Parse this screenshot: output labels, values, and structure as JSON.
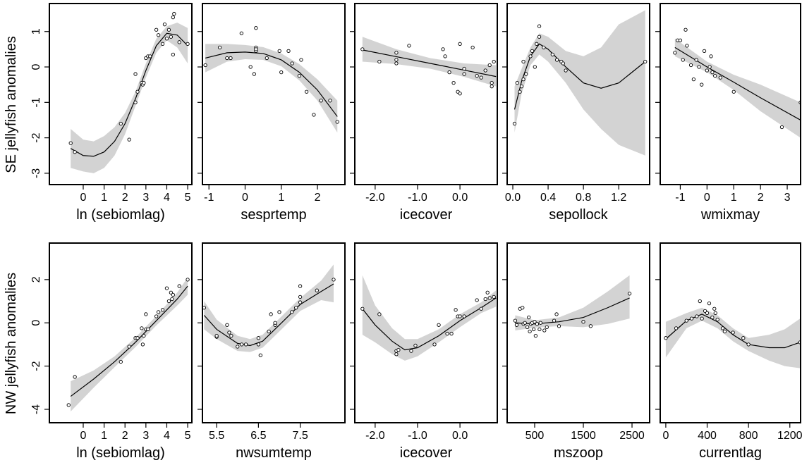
{
  "chart_data": [
    {
      "type": "scatter",
      "xlabel": "ln (sebiomlag)",
      "ylabel": "SE jellyfish anomalies",
      "xlim": [
        -1.62,
        5.2
      ],
      "xticks": [
        0,
        1,
        2,
        3,
        4,
        5
      ],
      "ylim": [
        -3.32,
        1.79
      ],
      "yticks": [
        -3,
        -2,
        -1,
        0,
        1
      ],
      "x": [
        -0.6,
        -0.4,
        1.8,
        2.2,
        2.5,
        2.5,
        2.6,
        2.8,
        2.85,
        2.9,
        3.0,
        3.1,
        3.2,
        3.5,
        3.6,
        3.8,
        3.9,
        4.0,
        4.1,
        4.2,
        4.3,
        4.35,
        4.3,
        4.6,
        5.0
      ],
      "values": [
        -2.15,
        -2.4,
        -1.6,
        -2.05,
        -0.2,
        -1.0,
        -0.7,
        -0.45,
        -0.5,
        -0.45,
        0.25,
        0.3,
        0.3,
        1.05,
        0.9,
        0.65,
        1.2,
        0.8,
        1.05,
        0.85,
        1.4,
        1.5,
        0.35,
        0.7,
        0.65
      ],
      "fit_x": [
        -0.6,
        0,
        0.5,
        1,
        1.5,
        2,
        2.5,
        3,
        3.5,
        4,
        4.5,
        5
      ],
      "fit": [
        -2.3,
        -2.5,
        -2.52,
        -2.4,
        -2.1,
        -1.6,
        -0.9,
        -0.1,
        0.6,
        0.95,
        0.9,
        0.6
      ],
      "fit_lower": [
        -2.85,
        -2.95,
        -3.0,
        -2.85,
        -2.5,
        -1.9,
        -1.1,
        -0.3,
        0.4,
        0.75,
        0.55,
        0.1
      ],
      "fit_upper": [
        -1.75,
        -2.05,
        -2.1,
        -1.95,
        -1.7,
        -1.3,
        -0.7,
        0.1,
        0.8,
        1.15,
        1.25,
        1.1
      ]
    },
    {
      "type": "scatter",
      "xlabel": "sesprtemp",
      "xlim": [
        -1.18,
        2.76
      ],
      "xticks": [
        -1,
        0,
        1,
        2
      ],
      "ylim": [
        -3.32,
        1.79
      ],
      "yticks": [
        -3,
        -2,
        -1,
        0,
        1
      ],
      "x": [
        -1.1,
        -0.7,
        -0.5,
        -0.4,
        -0.1,
        0.15,
        0.25,
        0.3,
        0.3,
        0.3,
        0.3,
        0.6,
        0.95,
        1.0,
        1.2,
        1.3,
        1.5,
        1.55,
        1.7,
        1.9,
        2.1,
        2.35,
        2.55
      ],
      "values": [
        0.05,
        0.55,
        0.25,
        0.25,
        0.95,
        0.0,
        -0.2,
        1.1,
        0.55,
        0.45,
        0.5,
        0.25,
        0.45,
        -0.15,
        0.45,
        0.1,
        -0.25,
        0.2,
        -0.7,
        -1.35,
        -0.95,
        -0.95,
        -1.55
      ],
      "fit_x": [
        -1.1,
        -0.5,
        0,
        0.5,
        1,
        1.5,
        2,
        2.55
      ],
      "fit": [
        0.25,
        0.4,
        0.42,
        0.38,
        0.2,
        -0.15,
        -0.65,
        -1.4
      ],
      "fit_lower": [
        -0.15,
        0.15,
        0.22,
        0.2,
        0.02,
        -0.38,
        -0.95,
        -1.85
      ],
      "fit_upper": [
        0.65,
        0.65,
        0.62,
        0.56,
        0.38,
        0.08,
        -0.35,
        -0.95
      ]
    },
    {
      "type": "scatter",
      "xlabel": "icecover",
      "xlim": [
        -2.48,
        0.88
      ],
      "xticks": [
        {
          "value": -2,
          "label": "-2.0"
        },
        {
          "value": -1,
          "label": "-1.0"
        },
        {
          "value": 0,
          "label": "0.0"
        }
      ],
      "ylim": [
        -3.32,
        1.79
      ],
      "yticks": [
        -3,
        -2,
        -1,
        0,
        1
      ],
      "x": [
        -2.3,
        -1.9,
        -1.5,
        -1.5,
        -1.5,
        -1.2,
        -0.4,
        -0.35,
        -0.25,
        -0.15,
        -0.05,
        0.0,
        0.0,
        0.1,
        0.1,
        0.3,
        0.4,
        0.5,
        0.6,
        0.7,
        0.75,
        0.75,
        0.8
      ],
      "values": [
        0.5,
        0.15,
        0.4,
        0.2,
        0.1,
        0.6,
        0.5,
        0.3,
        -0.15,
        -0.45,
        -0.7,
        0.65,
        -0.75,
        -0.05,
        -0.2,
        0.55,
        -0.25,
        -0.3,
        -0.1,
        0.05,
        -0.45,
        -0.55,
        0.15
      ],
      "fit_x": [
        -2.3,
        -1.5,
        -0.7,
        0.1,
        0.85
      ],
      "fit": [
        0.48,
        0.29,
        0.1,
        -0.09,
        -0.27
      ],
      "fit_lower": [
        0.15,
        0.08,
        -0.05,
        -0.28,
        -0.55
      ],
      "fit_upper": [
        0.85,
        0.5,
        0.25,
        0.1,
        0.05
      ]
    },
    {
      "type": "scatter",
      "xlabel": "sepollock",
      "xlim": [
        -0.064,
        1.55
      ],
      "xticks": [
        {
          "value": 0,
          "label": "0.0"
        },
        0.4,
        0.8,
        1.2
      ],
      "ylim": [
        -3.32,
        1.79
      ],
      "yticks": [
        -3,
        -2,
        -1,
        0,
        1
      ],
      "x": [
        0.02,
        0.05,
        0.08,
        0.1,
        0.12,
        0.12,
        0.15,
        0.2,
        0.22,
        0.25,
        0.27,
        0.3,
        0.3,
        0.35,
        0.45,
        0.5,
        0.55,
        0.57,
        0.6,
        1.5
      ],
      "values": [
        -1.6,
        -0.45,
        -0.7,
        -0.55,
        -0.35,
        0.15,
        -0.2,
        0.3,
        0.45,
        0.0,
        0.65,
        0.85,
        1.15,
        0.55,
        0.35,
        0.2,
        0.15,
        0.1,
        -0.1,
        0.15
      ],
      "fit_x": [
        0.02,
        0.1,
        0.2,
        0.3,
        0.4,
        0.6,
        0.8,
        1.0,
        1.2,
        1.5
      ],
      "fit": [
        -1.2,
        -0.4,
        0.3,
        0.65,
        0.5,
        0.0,
        -0.45,
        -0.6,
        -0.45,
        0.15
      ],
      "fit_lower": [
        -1.85,
        -0.75,
        0.05,
        0.35,
        0.15,
        -0.45,
        -1.2,
        -1.75,
        -2.2,
        -2.5
      ],
      "fit_upper": [
        -0.55,
        -0.05,
        0.55,
        0.95,
        0.85,
        0.45,
        0.3,
        0.55,
        1.2,
        1.6
      ]
    },
    {
      "type": "scatter",
      "xlabel": "wmixmay",
      "xlim": [
        -1.75,
        3.5
      ],
      "xticks": [
        -1,
        0,
        1,
        2,
        3
      ],
      "ylim": [
        -3.32,
        1.79
      ],
      "yticks": [
        -3,
        -2,
        -1,
        0,
        1
      ],
      "x": [
        -1.2,
        -1.1,
        -1.0,
        -0.9,
        -0.8,
        -0.75,
        -0.6,
        -0.5,
        -0.4,
        -0.3,
        -0.2,
        -0.1,
        0,
        0.1,
        0.15,
        0.2,
        0.3,
        0.5,
        1.0,
        2.8,
        3.5
      ],
      "values": [
        0.4,
        0.75,
        0.75,
        0.2,
        1.05,
        0.6,
        0.05,
        -0.35,
        0.2,
        0.0,
        -0.5,
        0.45,
        -0.1,
        0.0,
        0.3,
        -0.15,
        -0.25,
        -0.3,
        -0.7,
        -1.7,
        -1.0
      ],
      "fit_x": [
        -1.2,
        0,
        1,
        2,
        3.5
      ],
      "fit": [
        0.55,
        0.0,
        -0.43,
        -0.87,
        -1.5
      ],
      "fit_lower": [
        0.3,
        -0.15,
        -0.65,
        -1.25,
        -2.0
      ],
      "fit_upper": [
        0.8,
        0.15,
        -0.22,
        -0.5,
        -1.0
      ]
    },
    {
      "type": "scatter",
      "xlabel": "ln (sebiomlag)",
      "ylabel": "NW jellyfish anomalies",
      "xlim": [
        -1.62,
        5.2
      ],
      "xticks": [
        0,
        1,
        2,
        3,
        4,
        5
      ],
      "ylim": [
        -4.62,
        3.69
      ],
      "yticks": [
        -4,
        -2,
        0,
        2
      ],
      "x": [
        -0.7,
        -0.4,
        1.8,
        2.2,
        2.5,
        2.6,
        2.8,
        2.85,
        2.9,
        3.0,
        3.0,
        3.1,
        3.5,
        3.6,
        3.8,
        4.0,
        4.1,
        4.2,
        4.25,
        4.3,
        4.6,
        5.0
      ],
      "values": [
        -3.8,
        -2.5,
        -1.8,
        -1.1,
        -0.7,
        -0.7,
        -0.25,
        -1.0,
        -0.6,
        0.4,
        -0.3,
        -0.3,
        0.3,
        0.5,
        0.6,
        1.6,
        1.0,
        1.4,
        1.1,
        1.3,
        1.7,
        2.0
      ],
      "fit_x": [
        -0.6,
        0.5,
        1.5,
        2.5,
        3.5,
        4.5,
        5
      ],
      "fit": [
        -3.4,
        -2.6,
        -1.8,
        -0.9,
        0.1,
        1.1,
        1.7
      ],
      "fit_lower": [
        -4.1,
        -3.0,
        -2.05,
        -1.12,
        -0.12,
        0.8,
        1.3
      ],
      "fit_upper": [
        -2.7,
        -2.2,
        -1.55,
        -0.68,
        0.32,
        1.4,
        2.1
      ]
    },
    {
      "type": "scatter",
      "xlabel": "nwsumtemp",
      "xlim": [
        5.16,
        8.57
      ],
      "xticks": [
        5.5,
        6.5,
        7.5
      ],
      "ylim": [
        -4.62,
        3.69
      ],
      "yticks": [
        -4,
        -2,
        0,
        2
      ],
      "x": [
        5.2,
        5.5,
        5.5,
        5.75,
        5.8,
        5.85,
        6.0,
        6.1,
        6.2,
        6.5,
        6.5,
        6.55,
        6.75,
        6.8,
        6.9,
        6.9,
        7.0,
        7.3,
        7.4,
        7.5,
        7.5,
        7.5,
        7.9,
        8.3
      ],
      "values": [
        0.7,
        -0.65,
        -0.6,
        -0.1,
        -0.45,
        -0.6,
        -1.1,
        -1.0,
        -1.0,
        -1.0,
        -0.7,
        -1.5,
        -0.4,
        0.4,
        -0.1,
        0.0,
        0.5,
        0.5,
        0.7,
        0.95,
        1.2,
        1.7,
        1.5,
        2.0
      ],
      "fit_x": [
        5.2,
        5.5,
        6.0,
        6.3,
        6.6,
        7.0,
        7.5,
        8.0,
        8.3
      ],
      "fit": [
        0.35,
        -0.3,
        -0.95,
        -1.05,
        -0.85,
        -0.1,
        0.85,
        1.45,
        1.8
      ],
      "fit_lower": [
        -0.3,
        -0.75,
        -1.3,
        -1.35,
        -1.15,
        -0.4,
        0.55,
        1.05,
        0.95
      ],
      "fit_upper": [
        1.0,
        0.15,
        -0.6,
        -0.75,
        -0.55,
        0.2,
        1.15,
        1.95,
        2.7
      ]
    },
    {
      "type": "scatter",
      "xlabel": "icecover",
      "xlim": [
        -2.48,
        0.88
      ],
      "xticks": [
        {
          "value": -2,
          "label": "-2.0"
        },
        {
          "value": -1,
          "label": "-1.0"
        },
        {
          "value": 0,
          "label": "0.0"
        }
      ],
      "ylim": [
        -4.62,
        3.69
      ],
      "yticks": [
        -4,
        -2,
        0,
        2
      ],
      "x": [
        -2.3,
        -1.9,
        -1.5,
        -1.5,
        -1.45,
        -1.15,
        -1.05,
        -0.6,
        -0.5,
        -0.3,
        -0.2,
        -0.1,
        -0.05,
        0.0,
        0.1,
        0.4,
        0.5,
        0.6,
        0.65,
        0.7,
        0.8
      ],
      "values": [
        0.65,
        0.4,
        -1.3,
        -1.45,
        -1.25,
        -1.3,
        -1.05,
        -1.0,
        -0.1,
        -0.5,
        -0.5,
        0.6,
        0.3,
        0.3,
        0.3,
        1.05,
        0.65,
        1.1,
        1.4,
        1.15,
        1.2
      ],
      "fit_x": [
        -2.3,
        -2.0,
        -1.6,
        -1.3,
        -1.0,
        -0.5,
        0,
        0.5,
        0.85
      ],
      "fit": [
        0.65,
        -0.1,
        -0.85,
        -1.25,
        -1.15,
        -0.6,
        0.1,
        0.7,
        1.15
      ],
      "fit_lower": [
        -0.55,
        -0.9,
        -1.45,
        -1.75,
        -1.55,
        -0.9,
        -0.2,
        0.45,
        0.75
      ],
      "fit_upper": [
        2.2,
        0.8,
        -0.25,
        -0.75,
        -0.75,
        -0.3,
        0.4,
        0.95,
        1.5
      ]
    },
    {
      "type": "scatter",
      "xlabel": "mszoop",
      "xlim": [
        -65,
        2862
      ],
      "xticks": [
        500,
        1500,
        2500
      ],
      "ylim": [
        -4.62,
        3.69
      ],
      "yticks": [
        -4,
        -2,
        0,
        2
      ],
      "x": [
        100,
        130,
        200,
        250,
        270,
        300,
        350,
        380,
        400,
        420,
        450,
        480,
        500,
        520,
        550,
        600,
        620,
        700,
        750,
        900,
        950,
        1000,
        1500,
        1650,
        2450
      ],
      "values": [
        0.1,
        -0.1,
        0.65,
        0.7,
        -0.05,
        0.0,
        -0.2,
        0.25,
        -0.4,
        -0.05,
        0.0,
        -0.3,
        0.05,
        -0.6,
        -0.05,
        -0.3,
        0.0,
        -0.35,
        -0.2,
        0.1,
        0.4,
        -0.15,
        0.05,
        -0.15,
        1.35
      ],
      "fit_x": [
        100,
        500,
        1000,
        1500,
        2000,
        2450
      ],
      "fit": [
        0.0,
        -0.05,
        0.05,
        0.25,
        0.7,
        1.15
      ],
      "fit_lower": [
        -0.35,
        -0.22,
        -0.15,
        -0.2,
        -0.05,
        0.2
      ],
      "fit_upper": [
        0.35,
        0.12,
        0.25,
        0.7,
        1.45,
        2.2
      ]
    },
    {
      "type": "scatter",
      "xlabel": "currentlag",
      "xlim": [
        -54,
        1304
      ],
      "xticks": [
        0,
        400,
        800,
        1200
      ],
      "ylim": [
        -4.62,
        3.69
      ],
      "yticks": [
        -4,
        -2,
        0,
        2
      ],
      "x": [
        0,
        100,
        200,
        250,
        300,
        330,
        350,
        380,
        400,
        420,
        450,
        470,
        480,
        500,
        550,
        570,
        650,
        750,
        800,
        1300
      ],
      "values": [
        -0.7,
        -0.25,
        0.1,
        0.2,
        0.3,
        1.0,
        0.2,
        0.55,
        0.45,
        0.9,
        0.25,
        0.65,
        0.45,
        0.15,
        -0.25,
        -0.4,
        -0.45,
        -0.7,
        -1.0,
        -0.9
      ],
      "fit_x": [
        0,
        200,
        350,
        500,
        650,
        800,
        1000,
        1150,
        1300
      ],
      "fit": [
        -0.75,
        0.1,
        0.4,
        0.05,
        -0.55,
        -1.0,
        -1.15,
        -1.15,
        -0.9
      ],
      "fit_lower": [
        -1.6,
        -0.25,
        0.1,
        -0.25,
        -0.85,
        -1.3,
        -1.75,
        -2.0,
        -2.1
      ],
      "fit_upper": [
        0.05,
        0.45,
        0.7,
        0.35,
        -0.25,
        -0.7,
        -0.55,
        -0.3,
        0.2
      ]
    }
  ]
}
